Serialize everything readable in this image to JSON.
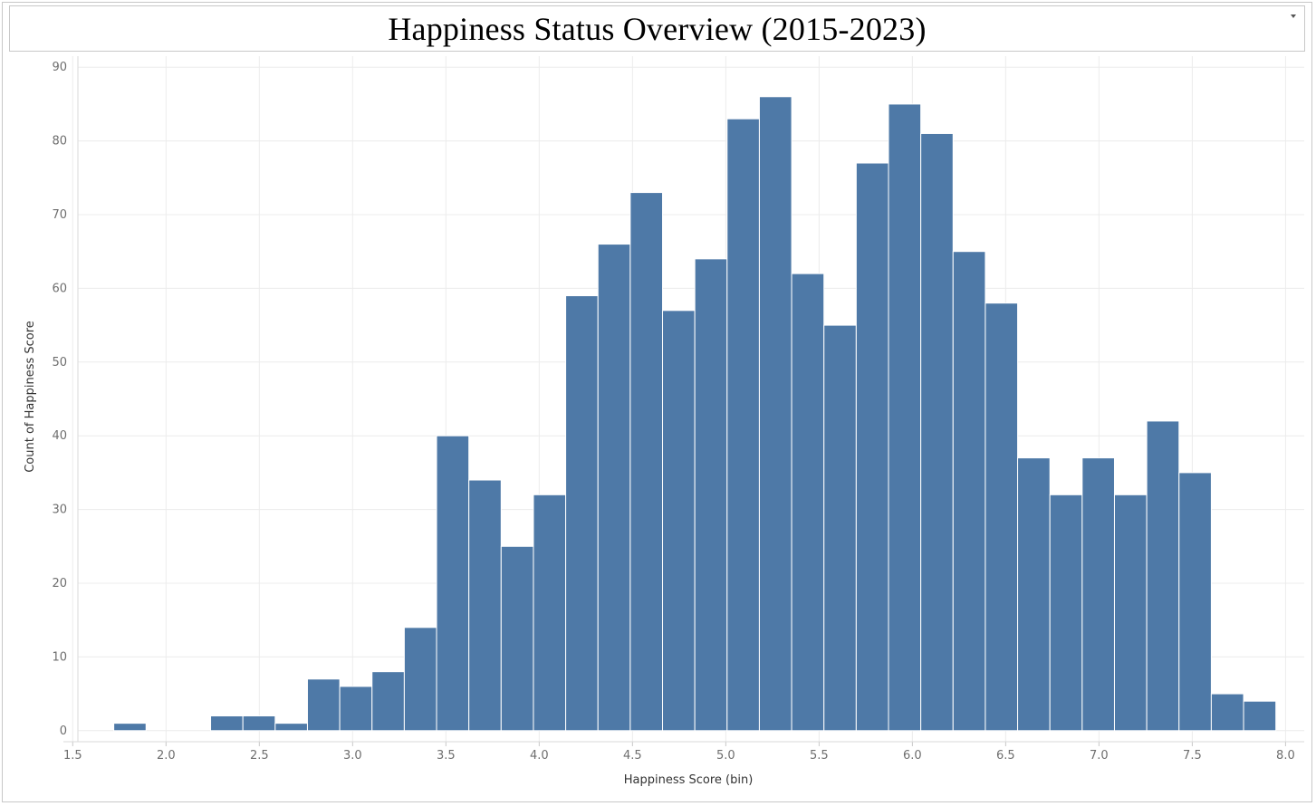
{
  "chart_data": {
    "type": "bar",
    "title": "Happiness Status Overview (2015-2023)",
    "xlabel": "Happiness Score (bin)",
    "ylabel": "Count of Happiness Score",
    "bin_width": 0.173,
    "bins": [
      {
        "start": 1.72,
        "count": 1
      },
      {
        "start": 1.893,
        "count": 0
      },
      {
        "start": 2.066,
        "count": 0
      },
      {
        "start": 2.239,
        "count": 2
      },
      {
        "start": 2.412,
        "count": 2
      },
      {
        "start": 2.585,
        "count": 1
      },
      {
        "start": 2.758,
        "count": 7
      },
      {
        "start": 2.931,
        "count": 6
      },
      {
        "start": 3.104,
        "count": 8
      },
      {
        "start": 3.277,
        "count": 14
      },
      {
        "start": 3.45,
        "count": 40
      },
      {
        "start": 3.623,
        "count": 34
      },
      {
        "start": 3.796,
        "count": 25
      },
      {
        "start": 3.969,
        "count": 32
      },
      {
        "start": 4.142,
        "count": 59
      },
      {
        "start": 4.315,
        "count": 66
      },
      {
        "start": 4.488,
        "count": 73
      },
      {
        "start": 4.661,
        "count": 57
      },
      {
        "start": 4.834,
        "count": 64
      },
      {
        "start": 5.007,
        "count": 83
      },
      {
        "start": 5.18,
        "count": 86
      },
      {
        "start": 5.353,
        "count": 62
      },
      {
        "start": 5.526,
        "count": 55
      },
      {
        "start": 5.699,
        "count": 77
      },
      {
        "start": 5.872,
        "count": 85
      },
      {
        "start": 6.045,
        "count": 81
      },
      {
        "start": 6.218,
        "count": 65
      },
      {
        "start": 6.391,
        "count": 58
      },
      {
        "start": 6.564,
        "count": 37
      },
      {
        "start": 6.737,
        "count": 32
      },
      {
        "start": 6.91,
        "count": 37
      },
      {
        "start": 7.083,
        "count": 32
      },
      {
        "start": 7.256,
        "count": 42
      },
      {
        "start": 7.429,
        "count": 35
      },
      {
        "start": 7.602,
        "count": 5
      },
      {
        "start": 7.775,
        "count": 4
      }
    ],
    "x_ticks": [
      "1.5",
      "2.0",
      "2.5",
      "3.0",
      "3.5",
      "4.0",
      "4.5",
      "5.0",
      "5.5",
      "6.0",
      "6.5",
      "7.0",
      "7.5",
      "8.0"
    ],
    "y_ticks": [
      "0",
      "10",
      "20",
      "30",
      "40",
      "50",
      "60",
      "70",
      "80",
      "90"
    ],
    "xlim": [
      1.45,
      8.1
    ],
    "ylim": [
      -1.5,
      91.5
    ],
    "grid": true,
    "legend": "none",
    "bar_color": "#4e79a7"
  }
}
